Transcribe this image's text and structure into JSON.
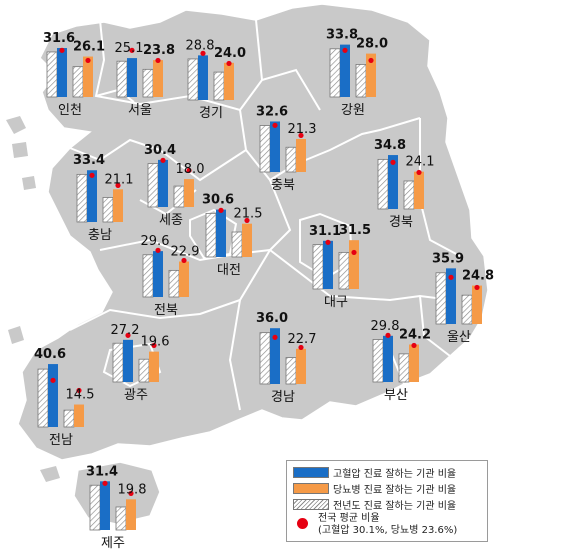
{
  "colors": {
    "hypertension": "#1a6ec6",
    "diabetes": "#f59a47",
    "national_avg_dot": "#e60012",
    "land": "#c9c9c9",
    "border": "#ffffff"
  },
  "regions": [
    {
      "name": "인천",
      "ht": 31.6,
      "dm": 26.1,
      "ht_prev": "hatched",
      "dm_prev": "hatched"
    },
    {
      "name": "서울",
      "ht": 25.1,
      "dm": 23.8
    },
    {
      "name": "경기",
      "ht": 28.8,
      "dm": 24.0
    },
    {
      "name": "강원",
      "ht": 33.8,
      "dm": 28.0
    },
    {
      "name": "충북",
      "ht": 32.6,
      "dm": 21.3
    },
    {
      "name": "충남",
      "ht": 33.4,
      "dm": 21.1
    },
    {
      "name": "세종",
      "ht": 30.4,
      "dm": 18.0
    },
    {
      "name": "대전",
      "ht": 30.6,
      "dm": 21.5
    },
    {
      "name": "경북",
      "ht": 34.8,
      "dm": 24.1
    },
    {
      "name": "대구",
      "ht": 31.1,
      "dm": 31.5
    },
    {
      "name": "전북",
      "ht": 29.6,
      "dm": 22.9
    },
    {
      "name": "울산",
      "ht": 35.9,
      "dm": 24.8
    },
    {
      "name": "광주",
      "ht": 27.2,
      "dm": 19.6
    },
    {
      "name": "경남",
      "ht": 36.0,
      "dm": 22.7
    },
    {
      "name": "부산",
      "ht": 29.8,
      "dm": 24.2
    },
    {
      "name": "전남",
      "ht": 40.6,
      "dm": 14.5
    },
    {
      "name": "제주",
      "ht": 31.4,
      "dm": 19.8
    }
  ],
  "national_avg": {
    "ht": 30.1,
    "dm": 23.6
  },
  "legend": {
    "ht": "고혈압 진료 잘하는 기관 비율",
    "dm": "당뇨병 진료 잘하는 기관 비율",
    "prev": "전년도 진료 잘하는 기관 비율",
    "avg_title": "전국 평균 비율",
    "avg_detail": "(고혈압 30.1%, 당뇨병 23.6%)"
  }
}
